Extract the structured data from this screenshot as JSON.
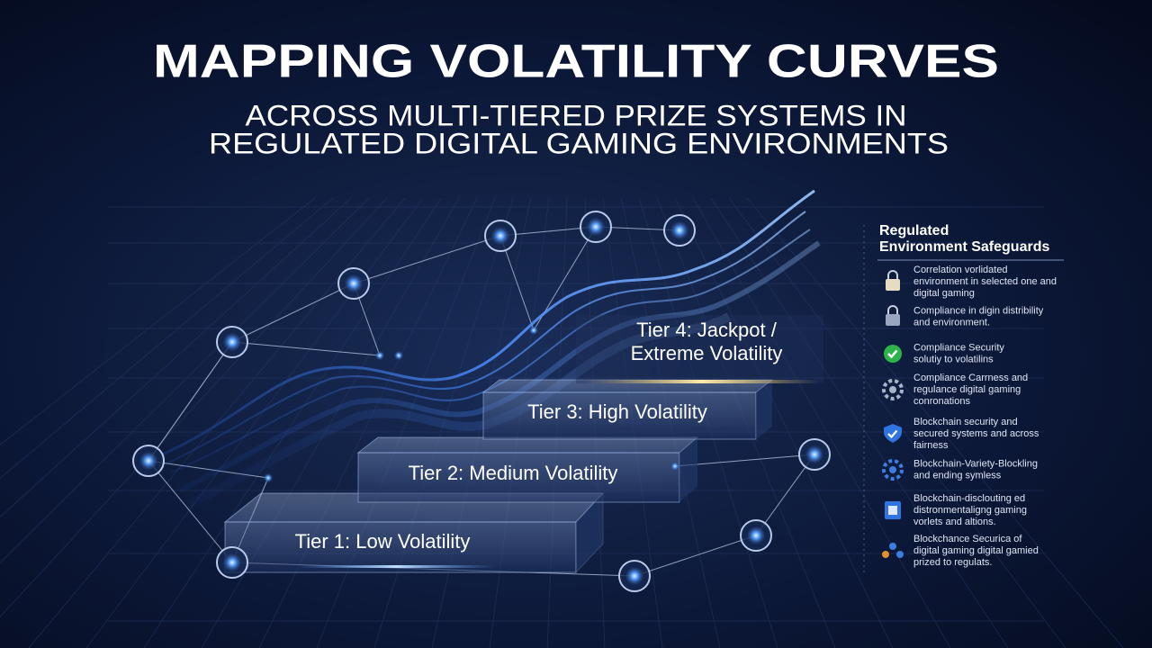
{
  "header": {
    "title": "MAPPING VOLATILITY CURVES",
    "subtitle": [
      "ACROSS MULTI-TIERED PRIZE SYSTEMS IN",
      "REGULATED DIGITAL GAMING ENVIRONMENTS"
    ]
  },
  "tiers": [
    {
      "label": [
        "Tier 1: Low Volatility"
      ]
    },
    {
      "label": [
        "Tier 2: Medium Volatility"
      ]
    },
    {
      "label": [
        "Tier 3: High Volatility"
      ]
    },
    {
      "label": [
        "Tier 4: Jackpot /",
        "Extreme Volatility"
      ]
    }
  ],
  "panel": {
    "title": [
      "Regulated",
      "Environment Safeguards"
    ],
    "items": [
      {
        "text": [
          "Correlation vorlidated",
          "environment in selected one and",
          "digital gaming"
        ]
      },
      {
        "text": [
          "Compliance in digin distribility",
          "and environment."
        ]
      },
      {
        "text": [
          "Compliance Security",
          "solutiy to volatilins"
        ]
      },
      {
        "text": [
          "Compliance Carrness and",
          "regulance digital gaming",
          "conronations"
        ]
      },
      {
        "text": [
          "Blockchain security and",
          "secured systems and across",
          "fairness"
        ]
      },
      {
        "text": [
          "Blockchain-Variety-Blockling",
          "and ending symless"
        ]
      },
      {
        "text": [
          "Blockchain-disclouting ed",
          "distronmentaligng gaming",
          "vorlets and altions."
        ]
      },
      {
        "text": [
          "Blockchance Securica of",
          "digital gaming digital gamied",
          "prized to regulats."
        ]
      }
    ]
  }
}
